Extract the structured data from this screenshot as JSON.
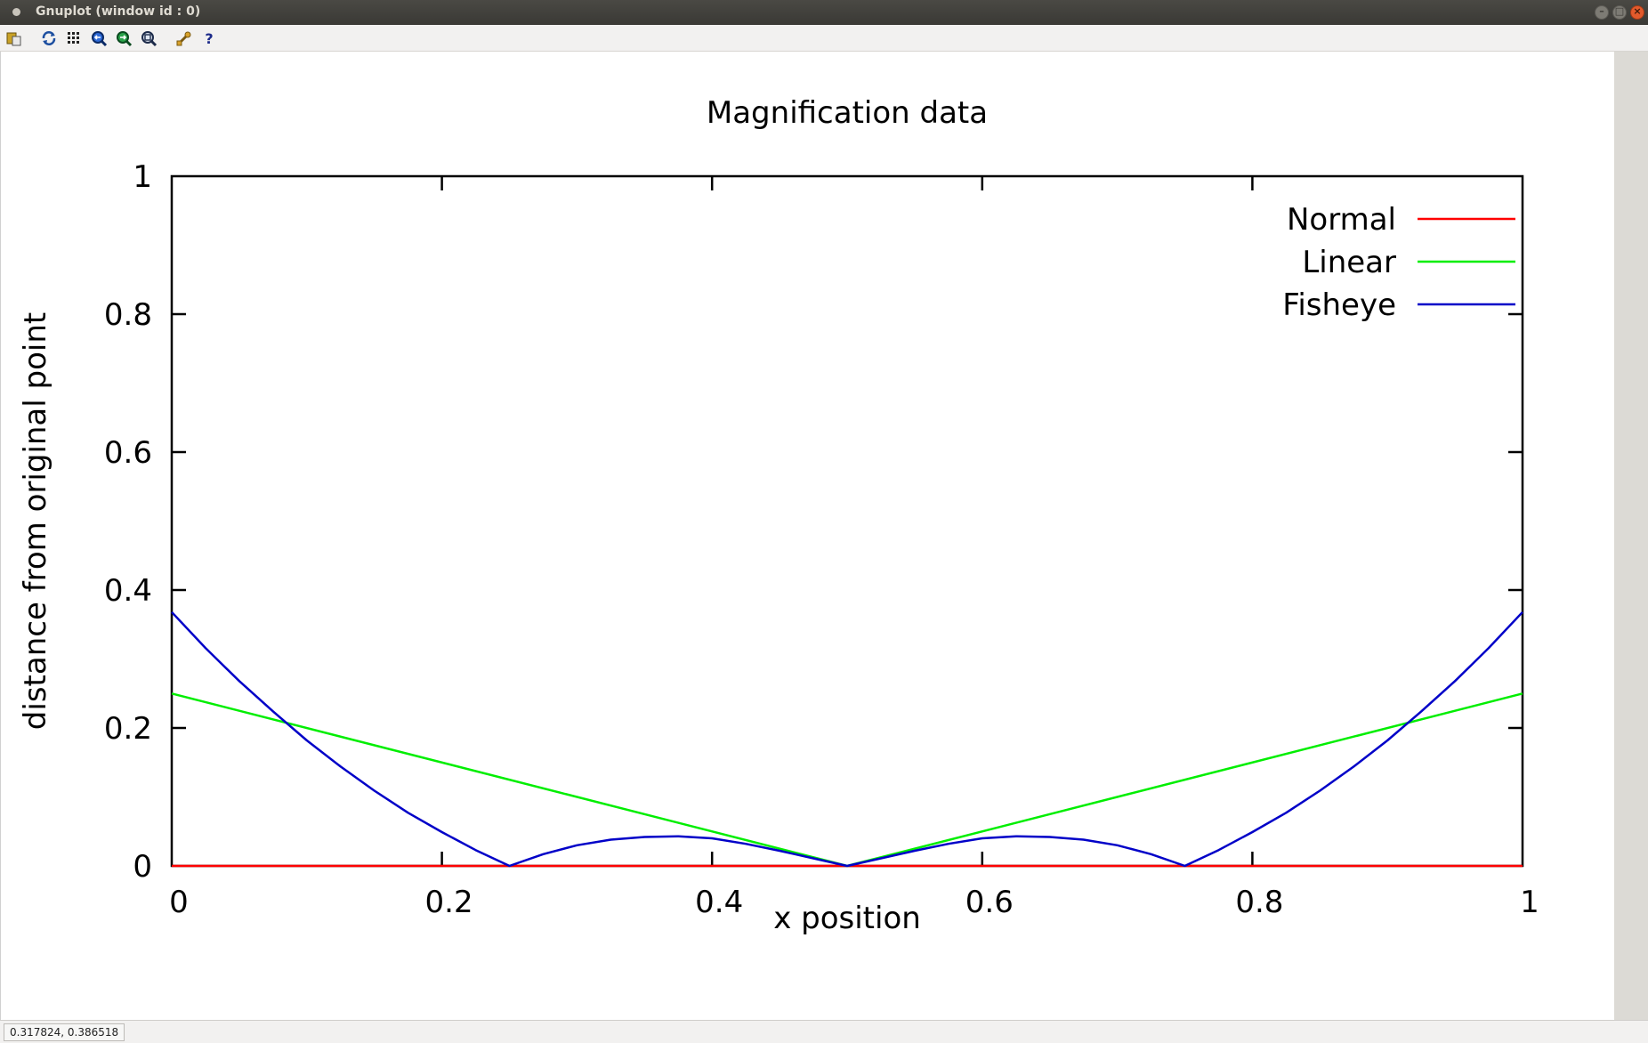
{
  "window": {
    "title": "Gnuplot (window id : 0)"
  },
  "toolbar": {
    "icons": [
      "copy-clipboard-icon",
      "replot-icon",
      "grid-icon",
      "zoom-previous-icon",
      "zoom-next-icon",
      "autoscale-icon",
      "settings-icon",
      "help-icon"
    ]
  },
  "status": {
    "coords": "0.317824,  0.386518"
  },
  "colors": {
    "normal": "#ff0000",
    "linear": "#00ee00",
    "fisheye": "#0000c8",
    "axis": "#000000"
  },
  "chart_data": {
    "type": "line",
    "title": "Magnification data",
    "xlabel": "x position",
    "ylabel": "distance from original point",
    "xlim": [
      0,
      1
    ],
    "ylim": [
      0,
      1
    ],
    "xticks": [
      "0",
      "0.2",
      "0.4",
      "0.6",
      "0.8",
      "1"
    ],
    "yticks": [
      "0",
      "0.2",
      "0.4",
      "0.6",
      "0.8",
      "1"
    ],
    "legend_position": "top-right",
    "grid": false,
    "series": [
      {
        "name": "Normal",
        "color": "#ff0000",
        "x": [
          0,
          1
        ],
        "y": [
          0,
          0
        ]
      },
      {
        "name": "Linear",
        "color": "#00ee00",
        "x": [
          0,
          0.5,
          1
        ],
        "y": [
          0.25,
          0,
          0.25
        ]
      },
      {
        "name": "Fisheye",
        "color": "#0000c8",
        "x": [
          0,
          0.025,
          0.05,
          0.075,
          0.1,
          0.125,
          0.15,
          0.175,
          0.2,
          0.225,
          0.25,
          0.275,
          0.3,
          0.325,
          0.35,
          0.375,
          0.4,
          0.425,
          0.45,
          0.475,
          0.5,
          0.525,
          0.55,
          0.575,
          0.6,
          0.625,
          0.65,
          0.675,
          0.7,
          0.725,
          0.75,
          0.775,
          0.8,
          0.825,
          0.85,
          0.875,
          0.9,
          0.925,
          0.95,
          0.975,
          1
        ],
        "y": [
          0.368,
          0.316,
          0.268,
          0.224,
          0.182,
          0.144,
          0.109,
          0.077,
          0.049,
          0.023,
          0.0,
          0.017,
          0.03,
          0.038,
          0.042,
          0.043,
          0.04,
          0.032,
          0.022,
          0.011,
          0.0,
          0.011,
          0.022,
          0.032,
          0.04,
          0.043,
          0.042,
          0.038,
          0.03,
          0.017,
          0.0,
          0.023,
          0.049,
          0.077,
          0.109,
          0.144,
          0.182,
          0.224,
          0.268,
          0.316,
          0.368
        ]
      }
    ]
  }
}
